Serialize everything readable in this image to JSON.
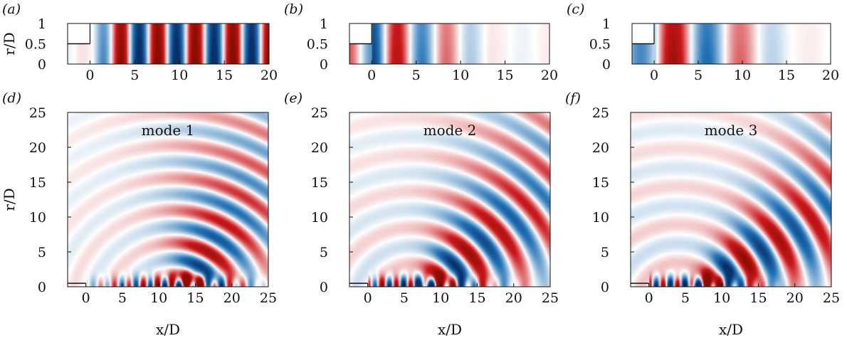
{
  "figure": {
    "colormap": {
      "negative": "#08306b",
      "mid": "#ffffff",
      "positive": "#8b0d00"
    }
  },
  "chart_data": [
    {
      "type": "heatmap",
      "panel_label": "(a)",
      "title": "",
      "xlabel": "",
      "ylabel": "r/D",
      "xlim": [
        -2.5,
        20
      ],
      "ylim": [
        0,
        1
      ],
      "xticks": [
        "0",
        "5",
        "10",
        "15",
        "20"
      ],
      "yticks": [
        "0",
        "0.5",
        "1"
      ],
      "field": {
        "kind": "axial",
        "k": 1.5,
        "phase": 1.2,
        "amp_start": 0.15,
        "growth": 0.25
      }
    },
    {
      "type": "heatmap",
      "panel_label": "(b)",
      "title": "",
      "xlabel": "",
      "ylabel": "",
      "xlim": [
        -2.5,
        20
      ],
      "ylim": [
        0,
        1
      ],
      "xticks": [
        "0",
        "5",
        "10",
        "15",
        "20"
      ],
      "yticks": [
        "0",
        "0.5",
        "1"
      ],
      "field": {
        "kind": "axial",
        "k": 1.12,
        "phase": 3.0,
        "amp_start": 0.9,
        "growth": -0.06
      }
    },
    {
      "type": "heatmap",
      "panel_label": "(c)",
      "title": "",
      "xlabel": "",
      "ylabel": "",
      "xlim": [
        -2.5,
        20
      ],
      "ylim": [
        0,
        1
      ],
      "xticks": [
        "0",
        "5",
        "10",
        "15",
        "20"
      ],
      "yticks": [
        "0",
        "0.5",
        "1"
      ],
      "field": {
        "kind": "axial",
        "k": 0.82,
        "phase": 4.4,
        "amp_start": 1.0,
        "growth": -0.06
      }
    },
    {
      "type": "heatmap",
      "panel_label": "(d)",
      "title": "mode 1",
      "xlabel": "x/D",
      "ylabel": "r/D",
      "xlim": [
        -2.5,
        25
      ],
      "ylim": [
        0,
        25
      ],
      "xticks": [
        "0",
        "5",
        "10",
        "15",
        "20",
        "25"
      ],
      "yticks": [
        "0",
        "5",
        "10",
        "15",
        "20",
        "25"
      ],
      "field": {
        "kind": "radiation",
        "source_x": 12,
        "source_y": -3,
        "k": 1.35,
        "center_deg": 58,
        "spread_deg": 32,
        "decay": 0.045,
        "amp": 1.1
      }
    },
    {
      "type": "heatmap",
      "panel_label": "(e)",
      "title": "mode 2",
      "xlabel": "x/D",
      "ylabel": "",
      "xlim": [
        -2.5,
        25
      ],
      "ylim": [
        0,
        25
      ],
      "xticks": [
        "0",
        "5",
        "10",
        "15",
        "20",
        "25"
      ],
      "yticks": [
        "0",
        "5",
        "10",
        "15",
        "20",
        "25"
      ],
      "field": {
        "kind": "radiation",
        "source_x": 6,
        "source_y": -2,
        "k": 1.2,
        "center_deg": 40,
        "spread_deg": 28,
        "decay": 0.035,
        "amp": 1.15
      }
    },
    {
      "type": "heatmap",
      "panel_label": "(f)",
      "title": "mode 3",
      "xlabel": "x/D",
      "ylabel": "",
      "xlim": [
        -2.5,
        25
      ],
      "ylim": [
        0,
        25
      ],
      "xticks": [
        "0",
        "5",
        "10",
        "15",
        "20",
        "25"
      ],
      "yticks": [
        "0",
        "5",
        "10",
        "15",
        "20",
        "25"
      ],
      "field": {
        "kind": "radiation",
        "source_x": 4,
        "source_y": -2,
        "k": 1.15,
        "center_deg": 32,
        "spread_deg": 22,
        "decay": 0.03,
        "amp": 1.2
      }
    }
  ]
}
